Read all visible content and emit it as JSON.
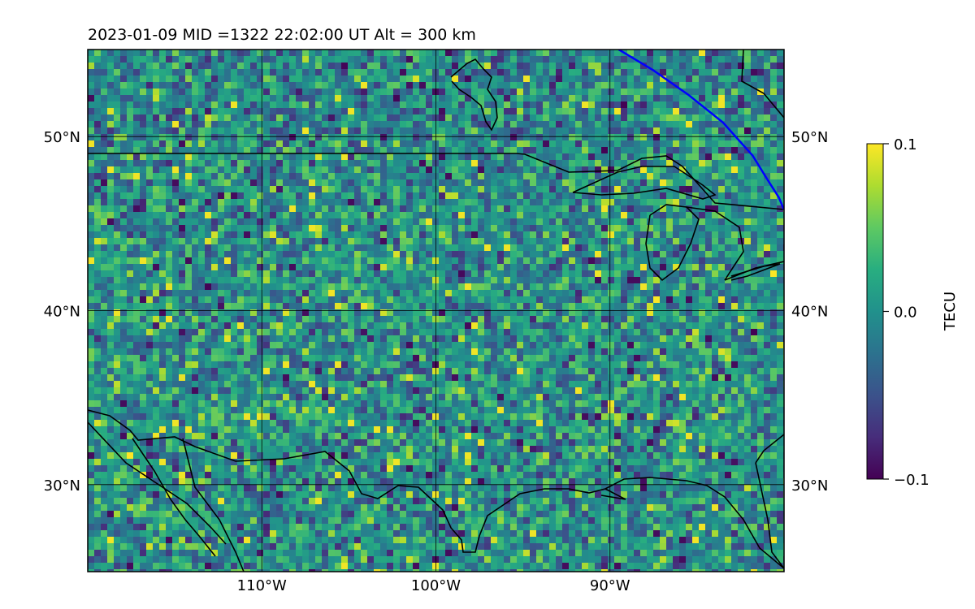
{
  "chart_data": {
    "type": "heatmap",
    "title": "2023-01-09  MID =1322    22:02:00  UT  Alt = 300 km",
    "x_ticks": [
      {
        "value": -110,
        "label": "110°W"
      },
      {
        "value": -100,
        "label": "100°W"
      },
      {
        "value": -90,
        "label": "90°W"
      }
    ],
    "y_ticks": [
      {
        "value": 50,
        "label": "50°N"
      },
      {
        "value": 40,
        "label": "40°N"
      },
      {
        "value": 30,
        "label": "30°N"
      }
    ],
    "xlim": [
      -120,
      -80
    ],
    "ylim": [
      25,
      55
    ],
    "grid": true,
    "colorbar": {
      "label": "TECU",
      "range": [
        -0.1,
        0.1
      ],
      "ticks": [
        {
          "value": 0.1,
          "label": "0.1"
        },
        {
          "value": 0.0,
          "label": "0.0"
        },
        {
          "value": -0.1,
          "label": "−0.1"
        }
      ],
      "colormap": "viridis",
      "colors": [
        "#440154",
        "#472d7b",
        "#3b528b",
        "#2c728e",
        "#21918c",
        "#28ae80",
        "#5ec962",
        "#addc30",
        "#fde725"
      ]
    },
    "overlay_line_color": "#0000ff",
    "overlay_line": [
      [
        -89.5,
        55
      ],
      [
        -87.5,
        53.8
      ],
      [
        -85.5,
        52.4
      ],
      [
        -83.5,
        50.8
      ],
      [
        -81.8,
        48.9
      ],
      [
        -81.0,
        47.6
      ],
      [
        -80.3,
        46.5
      ],
      [
        -80.0,
        45.8
      ]
    ],
    "coastline_color": "#000000"
  }
}
